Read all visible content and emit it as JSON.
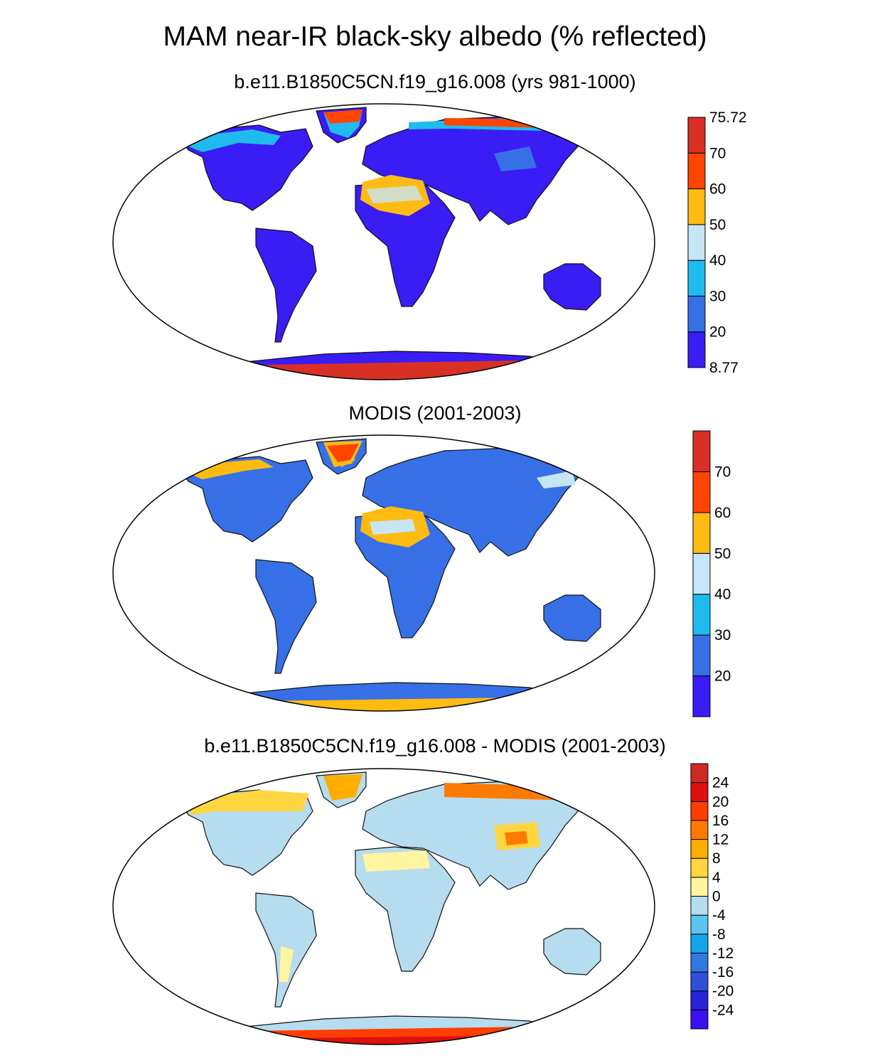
{
  "title": "MAM near-IR black-sky albedo (% reflected)",
  "panels": [
    {
      "id": "model",
      "title": "b.e11.B1850C5CN.f19_g16.008 (yrs 981-1000)",
      "colorbar": {
        "colors": [
          "#3a1cf5",
          "#3770e6",
          "#1fbbee",
          "#c6e6f5",
          "#ffbb11",
          "#ff4500",
          "#d93025"
        ],
        "labels": [
          "8.77",
          "20",
          "30",
          "40",
          "50",
          "60",
          "70",
          "75.72"
        ],
        "label_positions": [
          0,
          1,
          2,
          3,
          4,
          5,
          6,
          7
        ]
      }
    },
    {
      "id": "modis",
      "title": "MODIS (2001-2003)",
      "colorbar": {
        "colors": [
          "#3a1cf5",
          "#3770e6",
          "#1fbbee",
          "#c6e6f5",
          "#ffbb11",
          "#ff4500",
          "#d93025"
        ],
        "labels": [
          "20",
          "30",
          "40",
          "50",
          "60",
          "70"
        ],
        "label_positions": [
          1,
          2,
          3,
          4,
          5,
          6
        ]
      }
    },
    {
      "id": "diff",
      "title": "b.e11.B1850C5CN.f19_g16.008 - MODIS (2001-2003)",
      "colorbar": {
        "colors": [
          "#3a10f0",
          "#2a22d8",
          "#2f4fd8",
          "#2f78e0",
          "#14a6ea",
          "#5bc5f0",
          "#b6dcef",
          "#fff5a0",
          "#ffd640",
          "#ffae00",
          "#ff7a00",
          "#ff3d00",
          "#e01010",
          "#cc2a22"
        ],
        "labels": [
          "-24",
          "-20",
          "-16",
          "-12",
          "-8",
          "-4",
          "0",
          "4",
          "8",
          "12",
          "16",
          "20",
          "24"
        ],
        "label_positions": [
          1,
          2,
          3,
          4,
          5,
          6,
          7,
          8,
          9,
          10,
          11,
          12,
          13
        ]
      }
    }
  ]
}
